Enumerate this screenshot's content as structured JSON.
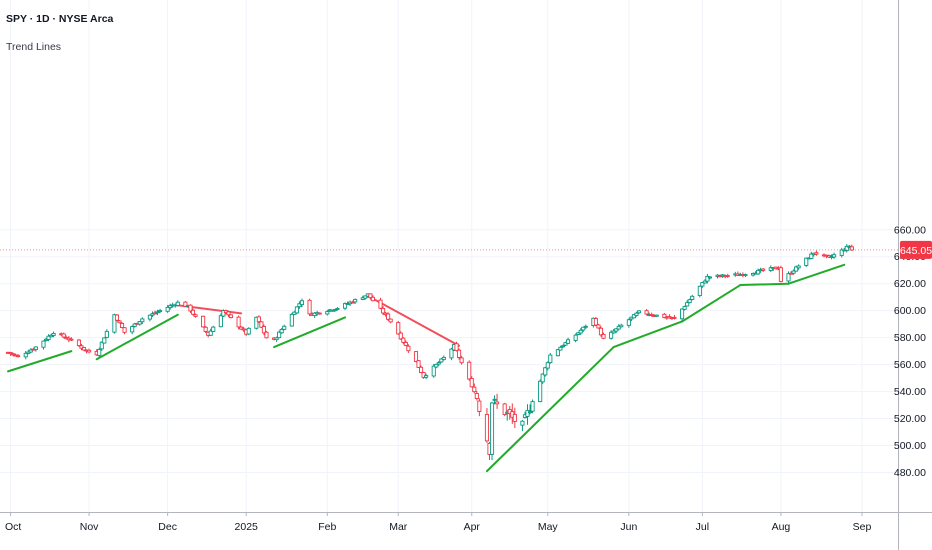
{
  "header": {
    "title": "SPY · 1D · NYSE Arca",
    "indicator": "Trend Lines"
  },
  "price_tag": {
    "value": "645.05",
    "color": "#f23645"
  },
  "colors": {
    "up_candle": "#089981",
    "down_candle": "#f23645",
    "support_line": "#22ab2a",
    "resistance_line": "#f0505a",
    "grid": "#f0f3fa",
    "axis_line": "#b2b5be"
  },
  "chart_data": {
    "type": "candlestick",
    "x_ticks": [
      "Oct",
      "Nov",
      "Dec",
      "2025",
      "Feb",
      "Mar",
      "Apr",
      "May",
      "Jun",
      "Jul",
      "Aug",
      "Sep"
    ],
    "y_ticks": [
      480,
      500,
      520,
      540,
      560,
      580,
      600,
      620,
      640,
      660
    ],
    "y_tick_labels": [
      "480.00",
      "500.00",
      "520.00",
      "540.00",
      "560.00",
      "580.00",
      "600.00",
      "620.00",
      "640.00",
      "660.00"
    ],
    "ylim": [
      465,
      668
    ],
    "grid": true,
    "waypoints": [
      {
        "d": "2024-09-30",
        "p": 569
      },
      {
        "d": "2024-10-04",
        "p": 566
      },
      {
        "d": "2024-10-11",
        "p": 573
      },
      {
        "d": "2024-10-18",
        "p": 584
      },
      {
        "d": "2024-10-25",
        "p": 578
      },
      {
        "d": "2024-10-31",
        "p": 570
      },
      {
        "d": "2024-11-04",
        "p": 568
      },
      {
        "d": "2024-11-11",
        "p": 597
      },
      {
        "d": "2024-11-15",
        "p": 584
      },
      {
        "d": "2024-11-22",
        "p": 594
      },
      {
        "d": "2024-12-06",
        "p": 606
      },
      {
        "d": "2024-12-10",
        "p": 603
      },
      {
        "d": "2024-12-18",
        "p": 582
      },
      {
        "d": "2024-12-24",
        "p": 600
      },
      {
        "d": "2025-01-02",
        "p": 583
      },
      {
        "d": "2025-01-06",
        "p": 595
      },
      {
        "d": "2025-01-10",
        "p": 580
      },
      {
        "d": "2025-01-13",
        "p": 578
      },
      {
        "d": "2025-01-24",
        "p": 608
      },
      {
        "d": "2025-01-27",
        "p": 597
      },
      {
        "d": "2025-02-07",
        "p": 602
      },
      {
        "d": "2025-02-19",
        "p": 612
      },
      {
        "d": "2025-02-28",
        "p": 592
      },
      {
        "d": "2025-03-10",
        "p": 562
      },
      {
        "d": "2025-03-13",
        "p": 551
      },
      {
        "d": "2025-03-21",
        "p": 565
      },
      {
        "d": "2025-03-25",
        "p": 574
      },
      {
        "d": "2025-04-03",
        "p": 536
      },
      {
        "d": "2025-04-08",
        "p": 497
      },
      {
        "d": "2025-04-09",
        "p": 533
      },
      {
        "d": "2025-04-21",
        "p": 514
      },
      {
        "d": "2025-05-02",
        "p": 567
      },
      {
        "d": "2025-05-12",
        "p": 582
      },
      {
        "d": "2025-05-19",
        "p": 594
      },
      {
        "d": "2025-05-23",
        "p": 579
      },
      {
        "d": "2025-06-06",
        "p": 599
      },
      {
        "d": "2025-06-20",
        "p": 594
      },
      {
        "d": "2025-07-03",
        "p": 625
      },
      {
        "d": "2025-07-17",
        "p": 627
      },
      {
        "d": "2025-07-31",
        "p": 632
      },
      {
        "d": "2025-08-01",
        "p": 622
      },
      {
        "d": "2025-08-14",
        "p": 643
      },
      {
        "d": "2025-08-20",
        "p": 639
      },
      {
        "d": "2025-08-28",
        "p": 648
      },
      {
        "d": "2025-08-29",
        "p": 645
      }
    ],
    "trend_lines": [
      {
        "kind": "support",
        "start": {
          "d": "2024-09-30",
          "p": 555
        },
        "end": {
          "d": "2024-10-25",
          "p": 570
        }
      },
      {
        "kind": "support",
        "start": {
          "d": "2024-11-04",
          "p": 564
        },
        "end": {
          "d": "2024-12-06",
          "p": 597
        }
      },
      {
        "kind": "resistance",
        "start": {
          "d": "2024-12-06",
          "p": 604
        },
        "end": {
          "d": "2024-12-31",
          "p": 598
        }
      },
      {
        "kind": "support",
        "start": {
          "d": "2025-01-13",
          "p": 573
        },
        "end": {
          "d": "2025-02-10",
          "p": 595
        }
      },
      {
        "kind": "resistance",
        "start": {
          "d": "2025-02-19",
          "p": 611
        },
        "end": {
          "d": "2025-03-27",
          "p": 574
        }
      },
      {
        "kind": "support",
        "start": {
          "d": "2025-04-07",
          "p": 481
        },
        "end": {
          "d": "2025-05-27",
          "p": 573
        }
      },
      {
        "kind": "support",
        "start": {
          "d": "2025-05-27",
          "p": 573
        },
        "end": {
          "d": "2025-06-23",
          "p": 592
        }
      },
      {
        "kind": "support",
        "start": {
          "d": "2025-06-23",
          "p": 592
        },
        "end": {
          "d": "2025-07-16",
          "p": 619
        }
      },
      {
        "kind": "support",
        "start": {
          "d": "2025-07-16",
          "p": 619
        },
        "end": {
          "d": "2025-08-04",
          "p": 620
        }
      },
      {
        "kind": "support",
        "start": {
          "d": "2025-08-04",
          "p": 620
        },
        "end": {
          "d": "2025-08-26",
          "p": 634
        }
      }
    ]
  }
}
